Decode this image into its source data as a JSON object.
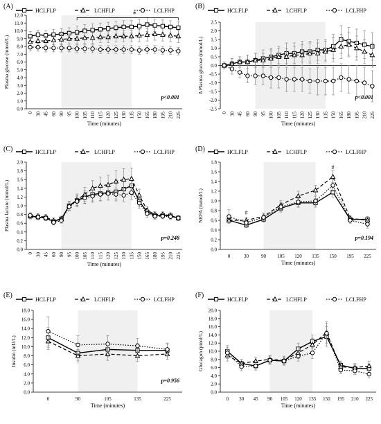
{
  "chart_data": [
    {
      "panel": "(A)",
      "type": "line",
      "ylabel": "Plasma glucose (mmol/L)",
      "xlabel": "Time (minutes)",
      "ylim": [
        0,
        12
      ],
      "yticks": [
        "0.0",
        "1.0",
        "2.0",
        "3.0",
        "4.0",
        "5.0",
        "6.0",
        "7.0",
        "8.0",
        "9.0",
        "10.0",
        "11.0",
        "12.0"
      ],
      "x": [
        "0",
        "30",
        "45",
        "60",
        "90",
        "95",
        "100",
        "105",
        "110",
        "115",
        "120",
        "125",
        "130",
        "135",
        "150",
        "165",
        "180",
        "195",
        "210",
        "225"
      ],
      "shade": [
        "90",
        "135"
      ],
      "pvalue": "p<0.001",
      "annotations": [
        "*"
      ],
      "series": [
        {
          "name": "HCLFLP",
          "values": [
            9.3,
            9.5,
            9.4,
            9.5,
            9.6,
            9.7,
            9.8,
            10.0,
            10.1,
            10.2,
            10.3,
            10.4,
            10.5,
            10.5,
            10.6,
            10.8,
            10.7,
            10.6,
            10.5,
            10.4
          ],
          "errors": [
            0.6,
            0.6,
            0.6,
            0.7,
            0.7,
            0.7,
            0.8,
            0.8,
            0.8,
            0.8,
            0.8,
            0.8,
            0.8,
            0.8,
            0.9,
            0.9,
            0.8,
            0.8,
            0.8,
            0.8
          ]
        },
        {
          "name": "LCHFLP",
          "values": [
            8.6,
            8.7,
            8.7,
            8.8,
            8.9,
            9.0,
            9.0,
            9.1,
            9.1,
            9.2,
            9.2,
            9.3,
            9.3,
            9.3,
            9.4,
            9.5,
            9.6,
            9.5,
            9.4,
            9.3
          ],
          "errors": [
            0.6,
            0.6,
            0.6,
            0.6,
            0.7,
            0.7,
            0.7,
            0.7,
            0.7,
            0.7,
            0.7,
            0.7,
            0.7,
            0.7,
            0.8,
            0.8,
            0.8,
            0.8,
            0.8,
            0.8
          ]
        },
        {
          "name": "LCLFHP",
          "values": [
            7.9,
            7.9,
            7.8,
            7.8,
            7.8,
            7.8,
            7.7,
            7.7,
            7.7,
            7.6,
            7.6,
            7.6,
            7.6,
            7.6,
            7.5,
            7.6,
            7.6,
            7.5,
            7.5,
            7.4
          ],
          "errors": [
            0.5,
            0.5,
            0.5,
            0.5,
            0.5,
            0.5,
            0.5,
            0.5,
            0.5,
            0.5,
            0.5,
            0.5,
            0.5,
            0.5,
            0.5,
            0.5,
            0.5,
            0.5,
            0.5,
            0.5
          ]
        }
      ]
    },
    {
      "panel": "(B)",
      "type": "line",
      "ylabel": "Δ Plasma glucose (mmol/L)",
      "xlabel": "Time (minutes)",
      "ylim": [
        -2.5,
        2.5
      ],
      "yticks": [
        "-2.5",
        "-2.0",
        "-1.5",
        "-1.0",
        "-0.5",
        "0.0",
        "0.5",
        "1.0",
        "1.5",
        "2.0",
        "2.5"
      ],
      "x": [
        "0",
        "30",
        "45",
        "60",
        "90",
        "95",
        "100",
        "105",
        "110",
        "115",
        "120",
        "125",
        "130",
        "135",
        "150",
        "165",
        "180",
        "195",
        "210",
        "225"
      ],
      "shade": [
        "90",
        "135"
      ],
      "pvalue": "p<0.001",
      "series": [
        {
          "name": "HCLFLP",
          "values": [
            0.0,
            0.1,
            0.2,
            0.2,
            0.3,
            0.4,
            0.5,
            0.6,
            0.7,
            0.7,
            0.8,
            0.8,
            0.9,
            0.9,
            1.1,
            1.5,
            1.4,
            1.3,
            1.2,
            1.1
          ],
          "errors": [
            0.2,
            0.3,
            0.3,
            0.4,
            0.4,
            0.5,
            0.5,
            0.5,
            0.6,
            0.6,
            0.6,
            0.6,
            0.6,
            0.6,
            0.7,
            0.8,
            0.8,
            0.8,
            0.8,
            0.8
          ]
        },
        {
          "name": "LCHFLP",
          "values": [
            0.0,
            0.1,
            0.2,
            0.2,
            0.3,
            0.3,
            0.4,
            0.5,
            0.5,
            0.6,
            0.6,
            0.7,
            0.7,
            0.8,
            0.9,
            1.1,
            1.2,
            1.0,
            0.8,
            0.6
          ],
          "errors": [
            0.2,
            0.3,
            0.3,
            0.4,
            0.4,
            0.4,
            0.5,
            0.5,
            0.5,
            0.5,
            0.6,
            0.6,
            0.6,
            0.6,
            0.7,
            0.7,
            0.7,
            0.7,
            0.7,
            0.7
          ]
        },
        {
          "name": "LCLFHP",
          "values": [
            0.0,
            -0.2,
            -0.4,
            -0.6,
            -0.6,
            -0.6,
            -0.7,
            -0.7,
            -0.8,
            -0.8,
            -0.8,
            -0.9,
            -0.9,
            -0.9,
            -0.9,
            -0.7,
            -0.8,
            -0.9,
            -1.0,
            -1.2
          ],
          "errors": [
            0.2,
            0.3,
            0.3,
            0.4,
            0.5,
            0.5,
            0.6,
            0.6,
            0.7,
            0.7,
            0.7,
            0.7,
            0.8,
            0.8,
            0.8,
            0.8,
            0.8,
            0.9,
            0.9,
            0.9
          ]
        }
      ]
    },
    {
      "panel": "(C)",
      "type": "line",
      "ylabel": "Plasma lactate (mmol/L)",
      "xlabel": "Time (minutes)",
      "ylim": [
        0,
        2
      ],
      "yticks": [
        "0.0",
        "0.2",
        "0.4",
        "0.6",
        "0.8",
        "1.0",
        "1.2",
        "1.4",
        "1.6",
        "1.8",
        "2.0"
      ],
      "x": [
        "0",
        "30",
        "45",
        "60",
        "90",
        "95",
        "100",
        "105",
        "110",
        "115",
        "120",
        "125",
        "130",
        "135",
        "150",
        "165",
        "180",
        "195",
        "210",
        "225"
      ],
      "shade": [
        "90",
        "135"
      ],
      "pvalue": "p=0.248",
      "series": [
        {
          "name": "HCLFLP",
          "values": [
            0.76,
            0.74,
            0.72,
            0.64,
            0.7,
            1.0,
            1.12,
            1.2,
            1.26,
            1.28,
            1.3,
            1.32,
            1.38,
            1.46,
            1.1,
            0.86,
            0.78,
            0.78,
            0.77,
            0.72
          ],
          "errors": [
            0.06,
            0.06,
            0.06,
            0.06,
            0.06,
            0.1,
            0.12,
            0.14,
            0.15,
            0.16,
            0.17,
            0.18,
            0.18,
            0.18,
            0.12,
            0.08,
            0.07,
            0.06,
            0.06,
            0.06
          ]
        },
        {
          "name": "LCHFLP",
          "values": [
            0.76,
            0.76,
            0.74,
            0.66,
            0.7,
            1.0,
            1.14,
            1.26,
            1.4,
            1.46,
            1.48,
            1.56,
            1.6,
            1.62,
            1.24,
            0.9,
            0.8,
            0.8,
            0.78,
            0.72
          ],
          "errors": [
            0.06,
            0.06,
            0.06,
            0.06,
            0.06,
            0.1,
            0.13,
            0.16,
            0.18,
            0.2,
            0.22,
            0.24,
            0.25,
            0.24,
            0.14,
            0.09,
            0.07,
            0.06,
            0.06,
            0.06
          ]
        },
        {
          "name": "LCLFHP",
          "values": [
            0.78,
            0.74,
            0.72,
            0.62,
            0.66,
            0.98,
            1.1,
            1.18,
            1.22,
            1.26,
            1.28,
            1.26,
            1.24,
            1.3,
            1.06,
            0.82,
            0.76,
            0.76,
            0.75,
            0.72
          ],
          "errors": [
            0.06,
            0.06,
            0.06,
            0.06,
            0.06,
            0.1,
            0.12,
            0.13,
            0.14,
            0.15,
            0.15,
            0.15,
            0.15,
            0.16,
            0.12,
            0.08,
            0.07,
            0.06,
            0.06,
            0.06
          ]
        }
      ]
    },
    {
      "panel": "(D)",
      "type": "line",
      "ylabel": "NEFA (mmol/L)",
      "xlabel": "Time (minutes)",
      "ylim": [
        0,
        1.8
      ],
      "yticks": [
        "0.0",
        "0.2",
        "0.4",
        "0.6",
        "0.8",
        "1.0",
        "1.2",
        "1.4",
        "1.6",
        "1.8"
      ],
      "x": [
        "0",
        "30",
        "90",
        "105",
        "120",
        "135",
        "150",
        "195",
        "225"
      ],
      "shade": [
        "90",
        "135"
      ],
      "pvalue": "p=0.194",
      "annotations": [
        "#",
        "#"
      ],
      "series": [
        {
          "name": "HCLFLP",
          "values": [
            0.6,
            0.5,
            0.62,
            0.85,
            0.96,
            0.96,
            1.18,
            0.62,
            0.62
          ],
          "errors": [
            0.06,
            0.05,
            0.06,
            0.08,
            0.09,
            0.09,
            0.1,
            0.06,
            0.06
          ]
        },
        {
          "name": "LCHFLP",
          "values": [
            0.6,
            0.6,
            0.68,
            0.92,
            1.1,
            1.22,
            1.5,
            0.64,
            0.6
          ],
          "errors": [
            0.06,
            0.06,
            0.07,
            0.09,
            0.1,
            0.1,
            0.12,
            0.06,
            0.06
          ]
        },
        {
          "name": "LCLFHP",
          "values": [
            0.68,
            0.55,
            0.66,
            0.88,
            0.98,
            1.0,
            1.32,
            0.6,
            0.52
          ],
          "errors": [
            0.14,
            0.06,
            0.07,
            0.09,
            0.1,
            0.1,
            0.12,
            0.06,
            0.08
          ]
        }
      ]
    },
    {
      "panel": "(E)",
      "type": "line",
      "ylabel": "Insulin (mU/L)",
      "xlabel": "Time (minutes)",
      "ylim": [
        0,
        18
      ],
      "yticks": [
        "0.0",
        "2.0",
        "4.0",
        "6.0",
        "8.0",
        "10.0",
        "12.0",
        "14.0",
        "16.0",
        "18.0"
      ],
      "x": [
        "0",
        "90",
        "105",
        "135",
        "225"
      ],
      "shade": [
        "90",
        "135"
      ],
      "pvalue": "p=0.956",
      "series": [
        {
          "name": "HCLFLP",
          "values": [
            12.0,
            8.6,
            9.4,
            9.2,
            9.2
          ],
          "errors": [
            2.2,
            1.6,
            1.6,
            1.5,
            1.4
          ]
        },
        {
          "name": "LCHFLP",
          "values": [
            11.2,
            8.0,
            8.4,
            8.0,
            8.4
          ],
          "errors": [
            1.8,
            1.4,
            1.4,
            1.2,
            1.2
          ]
        },
        {
          "name": "LCLFHP",
          "values": [
            13.4,
            10.4,
            10.6,
            10.2,
            9.4
          ],
          "errors": [
            3.2,
            2.0,
            1.8,
            1.6,
            1.4
          ]
        }
      ]
    },
    {
      "panel": "(F)",
      "type": "line",
      "ylabel": "Glucagon (pmol/L)",
      "xlabel": "Time (minutes)",
      "ylim": [
        0,
        20
      ],
      "yticks": [
        "0.0",
        "2.0",
        "4.0",
        "6.0",
        "8.0",
        "10.0",
        "12.0",
        "14.0",
        "16.0",
        "18.0",
        "20.0"
      ],
      "x": [
        "0",
        "30",
        "45",
        "90",
        "105",
        "120",
        "135",
        "150",
        "195",
        "210",
        "225"
      ],
      "shade": [
        "90",
        "135"
      ],
      "series": [
        {
          "name": "HCLFLP",
          "values": [
            10.0,
            7.0,
            6.4,
            7.8,
            7.6,
            10.6,
            12.4,
            13.6,
            6.6,
            5.8,
            5.8
          ],
          "errors": [
            1.4,
            1.0,
            1.0,
            1.0,
            1.0,
            1.4,
            1.6,
            2.4,
            1.0,
            0.9,
            0.9
          ]
        },
        {
          "name": "LCHFLP",
          "values": [
            9.0,
            7.0,
            7.6,
            8.0,
            7.8,
            9.6,
            11.6,
            14.6,
            6.2,
            6.0,
            6.4
          ],
          "errors": [
            1.4,
            1.0,
            1.0,
            1.0,
            1.0,
            1.4,
            1.6,
            2.6,
            1.0,
            1.0,
            1.2
          ]
        },
        {
          "name": "LCLFHP",
          "values": [
            9.6,
            6.2,
            6.4,
            7.8,
            7.6,
            8.8,
            9.6,
            14.4,
            5.4,
            5.2,
            4.4
          ],
          "errors": [
            1.4,
            1.0,
            1.0,
            1.0,
            1.0,
            1.2,
            1.4,
            2.4,
            0.9,
            0.9,
            0.9
          ]
        }
      ]
    }
  ]
}
